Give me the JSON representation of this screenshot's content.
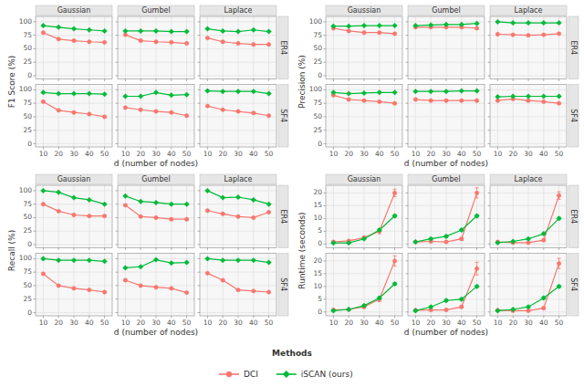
{
  "chart_data": {
    "type": "line",
    "x": [
      10,
      20,
      30,
      40,
      50
    ],
    "xlim": [
      5,
      55
    ],
    "xticks": [
      10,
      20,
      30,
      40,
      50
    ],
    "x_label": "d (number of nodes)",
    "columns": [
      "Gaussian",
      "Gumbel",
      "Laplace"
    ],
    "rows": [
      "ER4",
      "SF4"
    ],
    "grid": true,
    "legend": "bottom",
    "legend_title": "Methods",
    "series": [
      {
        "name": "DCI",
        "color": "#F8766D",
        "marker": "circle"
      },
      {
        "name": "iSCAN (ours)",
        "color": "#00BA38",
        "marker": "diamond"
      }
    ],
    "panels": [
      {
        "y_label": "F1 Score (%)",
        "ylim": [
          -6,
          110
        ],
        "yticks": [
          0,
          25,
          50,
          75,
          100
        ],
        "cells": [
          [
            {
              "series": [
                {
                  "values": [
                    80,
                    68,
                    65,
                    63,
                    62
                  ]
                },
                {
                  "values": [
                    93,
                    90,
                    87,
                    85,
                    83
                  ]
                }
              ]
            },
            {
              "series": [
                {
                  "values": [
                    76,
                    65,
                    63,
                    62,
                    60
                  ]
                },
                {
                  "values": [
                    83,
                    83,
                    83,
                    82,
                    82
                  ]
                }
              ]
            },
            {
              "series": [
                {
                  "values": [
                    70,
                    63,
                    60,
                    58,
                    58
                  ]
                },
                {
                  "values": [
                    87,
                    83,
                    82,
                    85,
                    82
                  ]
                }
              ]
            }
          ],
          [
            {
              "series": [
                {
                  "values": [
                    78,
                    62,
                    58,
                    55,
                    50
                  ]
                },
                {
                  "values": [
                    95,
                    93,
                    93,
                    93,
                    92
                  ]
                }
              ]
            },
            {
              "series": [
                {
                  "values": [
                    67,
                    63,
                    60,
                    58,
                    52
                  ]
                },
                {
                  "values": [
                    88,
                    88,
                    95,
                    90,
                    91
                  ]
                }
              ]
            },
            {
              "series": [
                {
                  "values": [
                    70,
                    63,
                    60,
                    57,
                    52
                  ]
                },
                {
                  "values": [
                    98,
                    97,
                    97,
                    97,
                    93
                  ]
                }
              ]
            }
          ]
        ]
      },
      {
        "y_label": "Precision (%)",
        "ylim": [
          -6,
          110
        ],
        "yticks": [
          0,
          25,
          50,
          75,
          100
        ],
        "cells": [
          [
            {
              "series": [
                {
                  "values": [
                    88,
                    83,
                    80,
                    80,
                    78
                  ]
                },
                {
                  "values": [
                    92,
                    92,
                    93,
                    93,
                    93
                  ]
                }
              ]
            },
            {
              "series": [
                {
                  "values": [
                    90,
                    90,
                    90,
                    90,
                    88
                  ]
                },
                {
                  "values": [
                    93,
                    94,
                    95,
                    95,
                    97
                  ]
                }
              ]
            },
            {
              "series": [
                {
                  "values": [
                    77,
                    76,
                    75,
                    76,
                    78
                  ]
                },
                {
                  "values": [
                    100,
                    98,
                    98,
                    98,
                    98
                  ]
                }
              ]
            }
          ],
          [
            {
              "series": [
                {
                  "values": [
                    90,
                    82,
                    80,
                    78,
                    75
                  ]
                },
                {
                  "values": [
                    95,
                    93,
                    94,
                    95,
                    95
                  ]
                }
              ]
            },
            {
              "series": [
                {
                  "values": [
                    82,
                    80,
                    80,
                    80,
                    80
                  ]
                },
                {
                  "values": [
                    97,
                    97,
                    97,
                    98,
                    98
                  ]
                }
              ]
            },
            {
              "series": [
                {
                  "values": [
                    80,
                    83,
                    80,
                    78,
                    75
                  ]
                },
                {
                  "values": [
                    87,
                    88,
                    88,
                    88,
                    88
                  ]
                }
              ]
            }
          ]
        ]
      },
      {
        "y_label": "Recall (%)",
        "ylim": [
          -6,
          110
        ],
        "yticks": [
          0,
          25,
          50,
          75,
          100
        ],
        "cells": [
          [
            {
              "series": [
                {
                  "values": [
                    75,
                    62,
                    55,
                    53,
                    53
                  ]
                },
                {
                  "values": [
                    100,
                    97,
                    87,
                    83,
                    75
                  ]
                }
              ]
            },
            {
              "series": [
                {
                  "values": [
                    73,
                    52,
                    50,
                    47,
                    47
                  ]
                },
                {
                  "values": [
                    90,
                    80,
                    78,
                    75,
                    75
                  ]
                }
              ]
            },
            {
              "series": [
                {
                  "values": [
                    63,
                    57,
                    52,
                    50,
                    60
                  ]
                },
                {
                  "values": [
                    100,
                    87,
                    88,
                    83,
                    75
                  ]
                }
              ]
            }
          ],
          [
            {
              "series": [
                {
                  "values": [
                    72,
                    50,
                    45,
                    42,
                    38
                  ]
                },
                {
                  "values": [
                    100,
                    97,
                    97,
                    97,
                    95
                  ]
                }
              ]
            },
            {
              "series": [
                {
                  "values": [
                    60,
                    50,
                    47,
                    45,
                    37
                  ]
                },
                {
                  "values": [
                    83,
                    85,
                    98,
                    92,
                    93
                  ]
                }
              ]
            },
            {
              "series": [
                {
                  "values": [
                    73,
                    60,
                    42,
                    40,
                    38
                  ]
                },
                {
                  "values": [
                    100,
                    97,
                    97,
                    97,
                    93
                  ]
                }
              ]
            }
          ]
        ]
      },
      {
        "y_label": "Runtime (seconds)",
        "ylim": [
          -1.5,
          23
        ],
        "yticks": [
          0,
          5,
          10,
          15,
          20
        ],
        "cells": [
          [
            {
              "series": [
                {
                  "values": [
                    0.8,
                    1.2,
                    2.5,
                    5.0,
                    20.0
                  ],
                  "errors": [
                    0.1,
                    0.2,
                    0.5,
                    1.0,
                    1.5
                  ]
                },
                {
                  "values": [
                    0.4,
                    0.4,
                    2.0,
                    5.5,
                    11.0
                  ],
                  "errors": [
                    0.1,
                    0.1,
                    0.3,
                    0.5,
                    0.5
                  ]
                }
              ]
            },
            {
              "series": [
                {
                  "values": [
                    0.8,
                    1.0,
                    0.8,
                    2.0,
                    20.0
                  ],
                  "errors": [
                    0.1,
                    0.1,
                    0.1,
                    0.5,
                    2.0
                  ]
                },
                {
                  "values": [
                    0.8,
                    2.0,
                    3.0,
                    5.5,
                    11.0
                  ],
                  "errors": [
                    0.1,
                    0.3,
                    0.5,
                    0.5,
                    0.5
                  ]
                }
              ]
            },
            {
              "series": [
                {
                  "values": [
                    0.8,
                    0.5,
                    0.5,
                    1.5,
                    19.0
                  ],
                  "errors": [
                    0.1,
                    0.1,
                    0.1,
                    0.5,
                    1.5
                  ]
                },
                {
                  "values": [
                    0.5,
                    1.0,
                    2.0,
                    4.0,
                    10.0
                  ],
                  "errors": [
                    0.1,
                    0.1,
                    0.3,
                    0.4,
                    0.5
                  ]
                }
              ]
            }
          ],
          [
            {
              "series": [
                {
                  "values": [
                    0.8,
                    1.0,
                    2.0,
                    5.0,
                    20.0
                  ],
                  "errors": [
                    0.1,
                    0.1,
                    0.5,
                    1.0,
                    2.0
                  ]
                },
                {
                  "values": [
                    0.5,
                    1.0,
                    2.5,
                    5.5,
                    11.0
                  ],
                  "errors": [
                    0.1,
                    0.1,
                    0.4,
                    0.5,
                    0.5
                  ]
                }
              ]
            },
            {
              "series": [
                {
                  "values": [
                    0.7,
                    0.8,
                    0.8,
                    2.0,
                    17.0
                  ],
                  "errors": [
                    0.1,
                    0.1,
                    0.1,
                    0.5,
                    2.5
                  ]
                },
                {
                  "values": [
                    0.5,
                    2.0,
                    4.5,
                    5.0,
                    10.0
                  ],
                  "errors": [
                    0.1,
                    0.3,
                    0.5,
                    0.5,
                    0.5
                  ]
                }
              ]
            },
            {
              "series": [
                {
                  "values": [
                    0.7,
                    0.5,
                    0.5,
                    1.5,
                    19.0
                  ],
                  "errors": [
                    0.1,
                    0.1,
                    0.1,
                    0.5,
                    2.0
                  ]
                },
                {
                  "values": [
                    0.5,
                    1.0,
                    2.0,
                    5.5,
                    10.0
                  ],
                  "errors": [
                    0.1,
                    0.1,
                    0.3,
                    0.5,
                    0.5
                  ]
                }
              ]
            }
          ]
        ]
      }
    ]
  }
}
